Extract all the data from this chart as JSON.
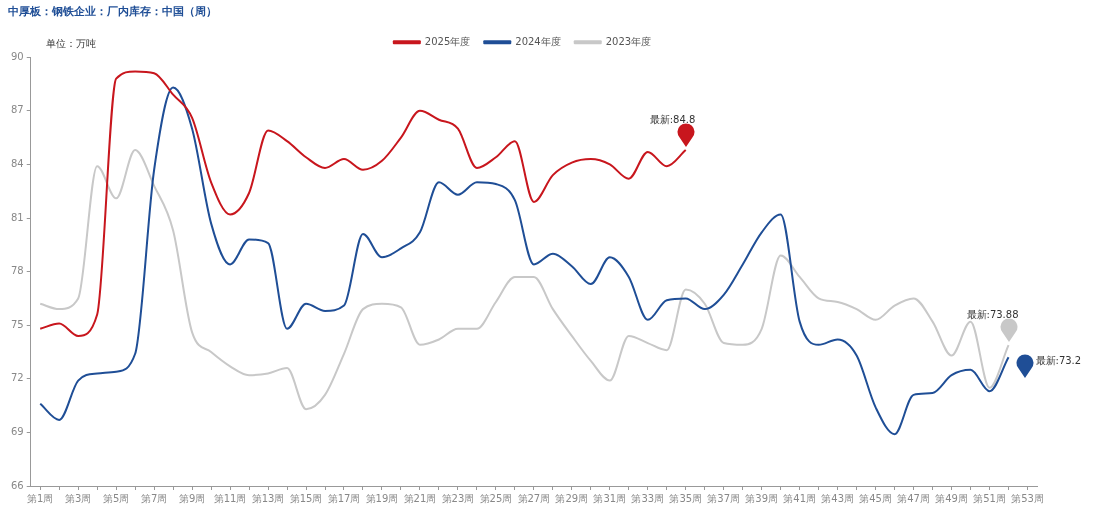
{
  "chart_data": {
    "type": "line",
    "title": "中厚板：钢铁企业：厂内库存：中国（周）",
    "ylabel": "单位：万吨",
    "categories": [
      "第1周",
      null,
      "第3周",
      null,
      "第5周",
      null,
      "第7周",
      null,
      "第9周",
      null,
      "第11周",
      null,
      "第13周",
      null,
      "第15周",
      null,
      "第17周",
      null,
      "第19周",
      null,
      "第21周",
      null,
      "第23周",
      null,
      "第25周",
      null,
      "第27周",
      null,
      "第29周",
      null,
      "第31周",
      null,
      "第33周",
      null,
      "第35周",
      null,
      "第37周",
      null,
      "第39周",
      null,
      "第41周",
      null,
      "第43周",
      null,
      "第45周",
      null,
      "第47周",
      null,
      "第49周",
      null,
      "第51周",
      null,
      "第53周"
    ],
    "series": [
      {
        "name": "2025年度",
        "color": "#c8161d",
        "values": [
          74.8,
          75.1,
          74.4,
          75.6,
          88.8,
          89.2,
          89.1,
          87.9,
          86.6,
          83.0,
          81.2,
          82.4,
          85.9,
          85.3,
          84.4,
          83.8,
          84.3,
          83.7,
          84.2,
          85.5,
          87.0,
          86.5,
          86.0,
          83.8,
          84.4,
          85.3,
          81.9,
          83.4,
          84.1,
          84.3,
          84.0,
          83.2,
          84.7,
          83.9,
          84.8,
          null,
          null,
          null,
          null,
          null,
          null,
          null,
          null,
          null,
          null,
          null,
          null,
          null,
          null,
          null,
          null,
          null,
          null
        ]
      },
      {
        "name": "2024年度",
        "color": "#1f4e96",
        "values": [
          70.6,
          69.7,
          71.9,
          72.3,
          72.4,
          73.4,
          83.7,
          88.3,
          86.0,
          80.7,
          78.4,
          79.8,
          79.6,
          74.8,
          76.2,
          75.8,
          76.1,
          80.1,
          78.8,
          79.3,
          80.2,
          83.0,
          82.3,
          83.0,
          82.9,
          82.0,
          78.4,
          79.0,
          78.3,
          77.3,
          78.8,
          77.7,
          75.3,
          76.4,
          76.5,
          75.9,
          76.7,
          78.4,
          80.2,
          81.2,
          75.2,
          73.9,
          74.2,
          73.3,
          70.4,
          68.9,
          71.1,
          71.2,
          72.2,
          72.5,
          71.3,
          73.2,
          null
        ]
      },
      {
        "name": "2023年度",
        "color": "#c8c8c8",
        "values": [
          76.2,
          75.9,
          76.5,
          83.9,
          82.1,
          84.8,
          82.8,
          80.3,
          74.6,
          73.5,
          72.7,
          72.2,
          72.3,
          72.6,
          70.3,
          71.1,
          73.4,
          75.9,
          76.2,
          76.0,
          73.9,
          74.2,
          74.8,
          74.8,
          76.3,
          77.7,
          77.7,
          75.9,
          74.4,
          73.0,
          71.9,
          74.4,
          74.0,
          73.6,
          77.0,
          76.2,
          74.0,
          73.9,
          74.8,
          78.9,
          77.7,
          76.5,
          76.3,
          75.9,
          75.3,
          76.1,
          76.5,
          75.2,
          73.3,
          75.2,
          71.5,
          73.88,
          null
        ]
      }
    ],
    "ylim": [
      66,
      90
    ],
    "yticks": [
      66,
      69,
      72,
      75,
      78,
      81,
      84,
      87,
      90
    ],
    "annotations": [
      {
        "text": "最新:84.8",
        "x": "第35周",
        "y": 84.8
      },
      "最新:73.2",
      "最新:73.88"
    ],
    "legend": "top",
    "grid": false,
    "marker": "none",
    "line_style": "solid"
  }
}
